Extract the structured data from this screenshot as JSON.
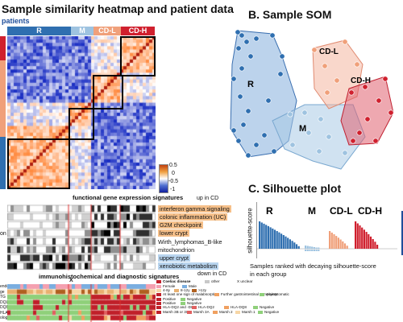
{
  "panels": {
    "a": {
      "title": "Sample similarity heatmap and patient data",
      "subtitle": "patients"
    },
    "b": {
      "title": "B. Sample SOM"
    },
    "c": {
      "title": "C. Silhouette plot"
    }
  },
  "groups": [
    "R",
    "M",
    "CD-L",
    "CD-H"
  ],
  "group_colors": {
    "R": "#2f6fb0",
    "M": "#9ec3e0",
    "CD-L": "#f0a07a",
    "CD-H": "#d0202e"
  },
  "colorbar": {
    "ticks": [
      "0.5",
      "0",
      "-0.5",
      "-1"
    ]
  },
  "signatures": {
    "header": "functional gene expression signatures",
    "up_label": "up in CD",
    "down_label": "down in CD",
    "items": [
      {
        "label": "interferon gamma signaling",
        "highlight": "orange"
      },
      {
        "label": "colonic inflammation (UC)",
        "highlight": "orange"
      },
      {
        "label": "G2M checkpoint",
        "highlight": "orange"
      },
      {
        "label": "lower crypt",
        "highlight": "orange"
      },
      {
        "label": "Wirth_lymphomas_B-like",
        "highlight": "none"
      },
      {
        "label": "mitochondrion",
        "highlight": "none"
      },
      {
        "label": "upper crypt",
        "highlight": "blue"
      },
      {
        "label": "xenobiotic metabolism",
        "highlight": "blue"
      }
    ],
    "left_cut_label": "on"
  },
  "immuno": {
    "header": "immunohistochemical and diagnostic signatures",
    "x_marker": "X",
    "row_labels": [
      "ender",
      "ge",
      "TG",
      "DQL",
      "DQ8",
      "HLA",
      "ology"
    ],
    "legend": [
      {
        "text": "Coeliac disease",
        "color": "#c0202a",
        "bold": true
      },
      {
        "text": "other",
        "color": "#c8c8c8"
      },
      {
        "text": "X unclear",
        "color": ""
      },
      {
        "text": "Female",
        "color": "#f4a0b0"
      },
      {
        "text": "Male",
        "color": "#7aaee0"
      },
      {
        "text": "4-8y",
        "color": "#f6d6a6"
      },
      {
        "text": "8-12y",
        "color": "#e8b070"
      },
      {
        "text": ">12y",
        "color": "#b06020"
      },
      {
        "text": "At least one sign of malabsorption",
        "color": "#c0202a"
      },
      {
        "text": "Further gastrointestinal complaints",
        "color": "#f0a060"
      },
      {
        "text": "Asymptomatic",
        "color": "#8fd07a"
      },
      {
        "text": "Positive",
        "color": "#c0202a"
      },
      {
        "text": "Negative",
        "color": "#8fd07a"
      },
      {
        "text": "Positive",
        "color": "#c0202a"
      },
      {
        "text": "Negative",
        "color": "#8fd07a"
      },
      {
        "text": "HLA-DQ2 and -DQ8",
        "color": "#c0202a"
      },
      {
        "text": "HLA-DQ2",
        "color": "#e06060"
      },
      {
        "text": "HLA-DQ8",
        "color": "#f0a060"
      },
      {
        "text": "Negative",
        "color": "#8fd07a"
      },
      {
        "text": "Marsh 3B or 3C",
        "color": "#c0202a"
      },
      {
        "text": "Marsh 3A",
        "color": "#e06060"
      },
      {
        "text": "Marsh 2",
        "color": "#f0a060"
      },
      {
        "text": "Marsh 1",
        "color": "#f6d6a6"
      },
      {
        "text": "Negative",
        "color": "#8fd07a"
      }
    ]
  },
  "silhouette": {
    "ylabel": "silhouette-score",
    "caption_line1": "Samples ranked with decaying silhouette-score",
    "caption_line2": "in each group"
  },
  "som": {
    "labels": [
      "R",
      "M",
      "CD-L",
      "CD-H"
    ]
  }
}
